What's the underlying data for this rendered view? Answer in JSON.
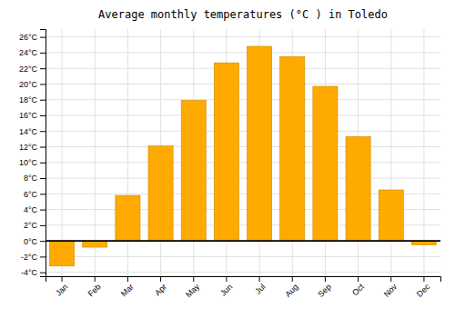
{
  "chart_data": {
    "type": "bar",
    "title": "Average monthly temperatures (°C ) in Toledo",
    "categories": [
      "Jan",
      "Feb",
      "Mar",
      "Apr",
      "May",
      "Jun",
      "Jul",
      "Aug",
      "Sep",
      "Oct",
      "Nov",
      "Dec"
    ],
    "values": [
      -3.2,
      -0.8,
      5.8,
      12.1,
      17.9,
      22.7,
      24.8,
      23.5,
      19.7,
      13.3,
      6.5,
      -0.5
    ],
    "color": "#FFAA00",
    "ylim": [
      -4.5,
      27
    ],
    "yticks": [
      {
        "value": -4,
        "label": "-4°C"
      },
      {
        "value": -2,
        "label": "-2°C"
      },
      {
        "value": 0,
        "label": "0°C"
      },
      {
        "value": 2,
        "label": "2°C"
      },
      {
        "value": 4,
        "label": "4°C"
      },
      {
        "value": 6,
        "label": "6°C"
      },
      {
        "value": 8,
        "label": "8°C"
      },
      {
        "value": 10,
        "label": "10°C"
      },
      {
        "value": 12,
        "label": "12°C"
      },
      {
        "value": 14,
        "label": "14°C"
      },
      {
        "value": 16,
        "label": "16°C"
      },
      {
        "value": 18,
        "label": "18°C"
      },
      {
        "value": 20,
        "label": "20°C"
      },
      {
        "value": 22,
        "label": "22°C"
      },
      {
        "value": 24,
        "label": "24°C"
      },
      {
        "value": 26,
        "label": "26°C"
      }
    ],
    "grid": true
  }
}
